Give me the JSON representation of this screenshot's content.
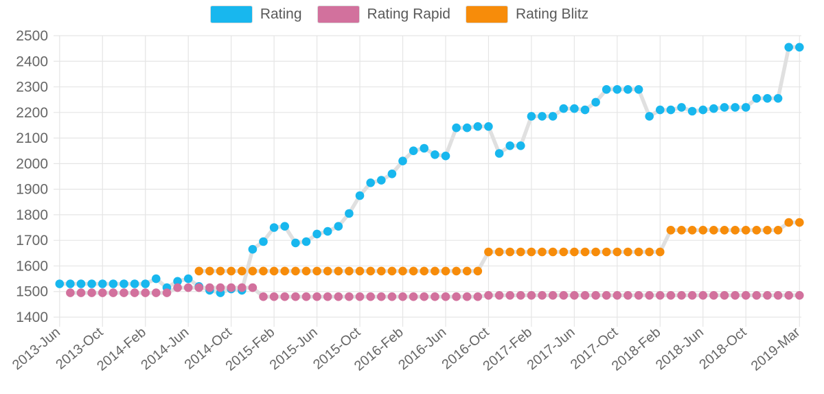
{
  "chart_data": {
    "type": "line",
    "title": "",
    "xlabel": "",
    "ylabel": "",
    "ylim": [
      1400,
      2500
    ],
    "y_ticks": [
      1400,
      1500,
      1600,
      1700,
      1800,
      1900,
      2000,
      2100,
      2200,
      2300,
      2400,
      2500
    ],
    "grid": true,
    "legend_position": "top",
    "line_color": "#e0e0e0",
    "grid_color": "#e5e5e5",
    "text_color": "#666666",
    "x_tick_labels_shown": [
      "2013-Jun",
      "2013-Oct",
      "2014-Feb",
      "2014-Jun",
      "2014-Oct",
      "2015-Feb",
      "2015-Jun",
      "2015-Oct",
      "2016-Feb",
      "2016-Jun",
      "2016-Oct",
      "2017-Feb",
      "2017-Jun",
      "2017-Oct",
      "2018-Feb",
      "2018-Jun",
      "2018-Oct",
      "2019-Mar"
    ],
    "labeled_tick_indices": [
      0,
      4,
      8,
      12,
      16,
      20,
      24,
      28,
      32,
      36,
      40,
      44,
      48,
      52,
      56,
      60,
      64,
      69
    ],
    "categories": [
      "2013-Jun",
      "2013-Jul",
      "2013-Aug",
      "2013-Sep",
      "2013-Oct",
      "2013-Nov",
      "2013-Dec",
      "2014-Jan",
      "2014-Feb",
      "2014-Mar",
      "2014-Apr",
      "2014-May",
      "2014-Jun",
      "2014-Jul",
      "2014-Aug",
      "2014-Sep",
      "2014-Oct",
      "2014-Nov",
      "2014-Dec",
      "2015-Jan",
      "2015-Feb",
      "2015-Mar",
      "2015-Apr",
      "2015-May",
      "2015-Jun",
      "2015-Jul",
      "2015-Aug",
      "2015-Sep",
      "2015-Oct",
      "2015-Nov",
      "2015-Dec",
      "2016-Jan",
      "2016-Feb",
      "2016-Mar",
      "2016-Apr",
      "2016-May",
      "2016-Jun",
      "2016-Jul",
      "2016-Aug",
      "2016-Sep",
      "2016-Oct",
      "2016-Nov",
      "2016-Dec",
      "2017-Jan",
      "2017-Feb",
      "2017-Mar",
      "2017-Apr",
      "2017-May",
      "2017-Jun",
      "2017-Jul",
      "2017-Aug",
      "2017-Sep",
      "2017-Oct",
      "2017-Nov",
      "2017-Dec",
      "2018-Jan",
      "2018-Feb",
      "2018-Mar",
      "2018-Apr",
      "2018-May",
      "2018-Jun",
      "2018-Jul",
      "2018-Aug",
      "2018-Sep",
      "2018-Oct",
      "2018-Nov",
      "2018-Dec",
      "2019-Jan",
      "2019-Feb",
      "2019-Mar"
    ],
    "series": [
      {
        "name": "Rating",
        "color": "#18b7ee",
        "values": [
          1530,
          1530,
          1530,
          1530,
          1530,
          1530,
          1530,
          1530,
          1530,
          1550,
          1515,
          1540,
          1550,
          1520,
          1505,
          1495,
          1510,
          1505,
          1665,
          1695,
          1750,
          1755,
          1690,
          1695,
          1725,
          1735,
          1755,
          1805,
          1875,
          1925,
          1935,
          1960,
          2010,
          2050,
          2060,
          2035,
          2030,
          2140,
          2140,
          2145,
          2145,
          2040,
          2070,
          2070,
          2185,
          2185,
          2185,
          2215,
          2215,
          2210,
          2240,
          2290,
          2290,
          2290,
          2290,
          2185,
          2210,
          2210,
          2220,
          2205,
          2210,
          2215,
          2220,
          2220,
          2220,
          2255,
          2255,
          2255,
          2455,
          2455
        ]
      },
      {
        "name": "Rating Rapid",
        "color": "#d2719d",
        "values": [
          null,
          1495,
          1495,
          1495,
          1495,
          1495,
          1495,
          1495,
          1495,
          1495,
          1495,
          1515,
          1515,
          1515,
          1515,
          1515,
          1515,
          1515,
          1515,
          1480,
          1480,
          1480,
          1480,
          1480,
          1480,
          1480,
          1480,
          1480,
          1480,
          1480,
          1480,
          1480,
          1480,
          1480,
          1480,
          1480,
          1480,
          1480,
          1480,
          1480,
          1485,
          1485,
          1485,
          1485,
          1485,
          1485,
          1485,
          1485,
          1485,
          1485,
          1485,
          1485,
          1485,
          1485,
          1485,
          1485,
          1485,
          1485,
          1485,
          1485,
          1485,
          1485,
          1485,
          1485,
          1485,
          1485,
          1485,
          1485,
          1485,
          1485
        ]
      },
      {
        "name": "Rating Blitz",
        "color": "#f78c0a",
        "values": [
          null,
          null,
          null,
          null,
          null,
          null,
          null,
          null,
          null,
          null,
          null,
          null,
          null,
          1580,
          1580,
          1580,
          1580,
          1580,
          1580,
          1580,
          1580,
          1580,
          1580,
          1580,
          1580,
          1580,
          1580,
          1580,
          1580,
          1580,
          1580,
          1580,
          1580,
          1580,
          1580,
          1580,
          1580,
          1580,
          1580,
          1580,
          1655,
          1655,
          1655,
          1655,
          1655,
          1655,
          1655,
          1655,
          1655,
          1655,
          1655,
          1655,
          1655,
          1655,
          1655,
          1655,
          1655,
          1740,
          1740,
          1740,
          1740,
          1740,
          1740,
          1740,
          1740,
          1740,
          1740,
          1740,
          1770,
          1770
        ]
      }
    ]
  }
}
